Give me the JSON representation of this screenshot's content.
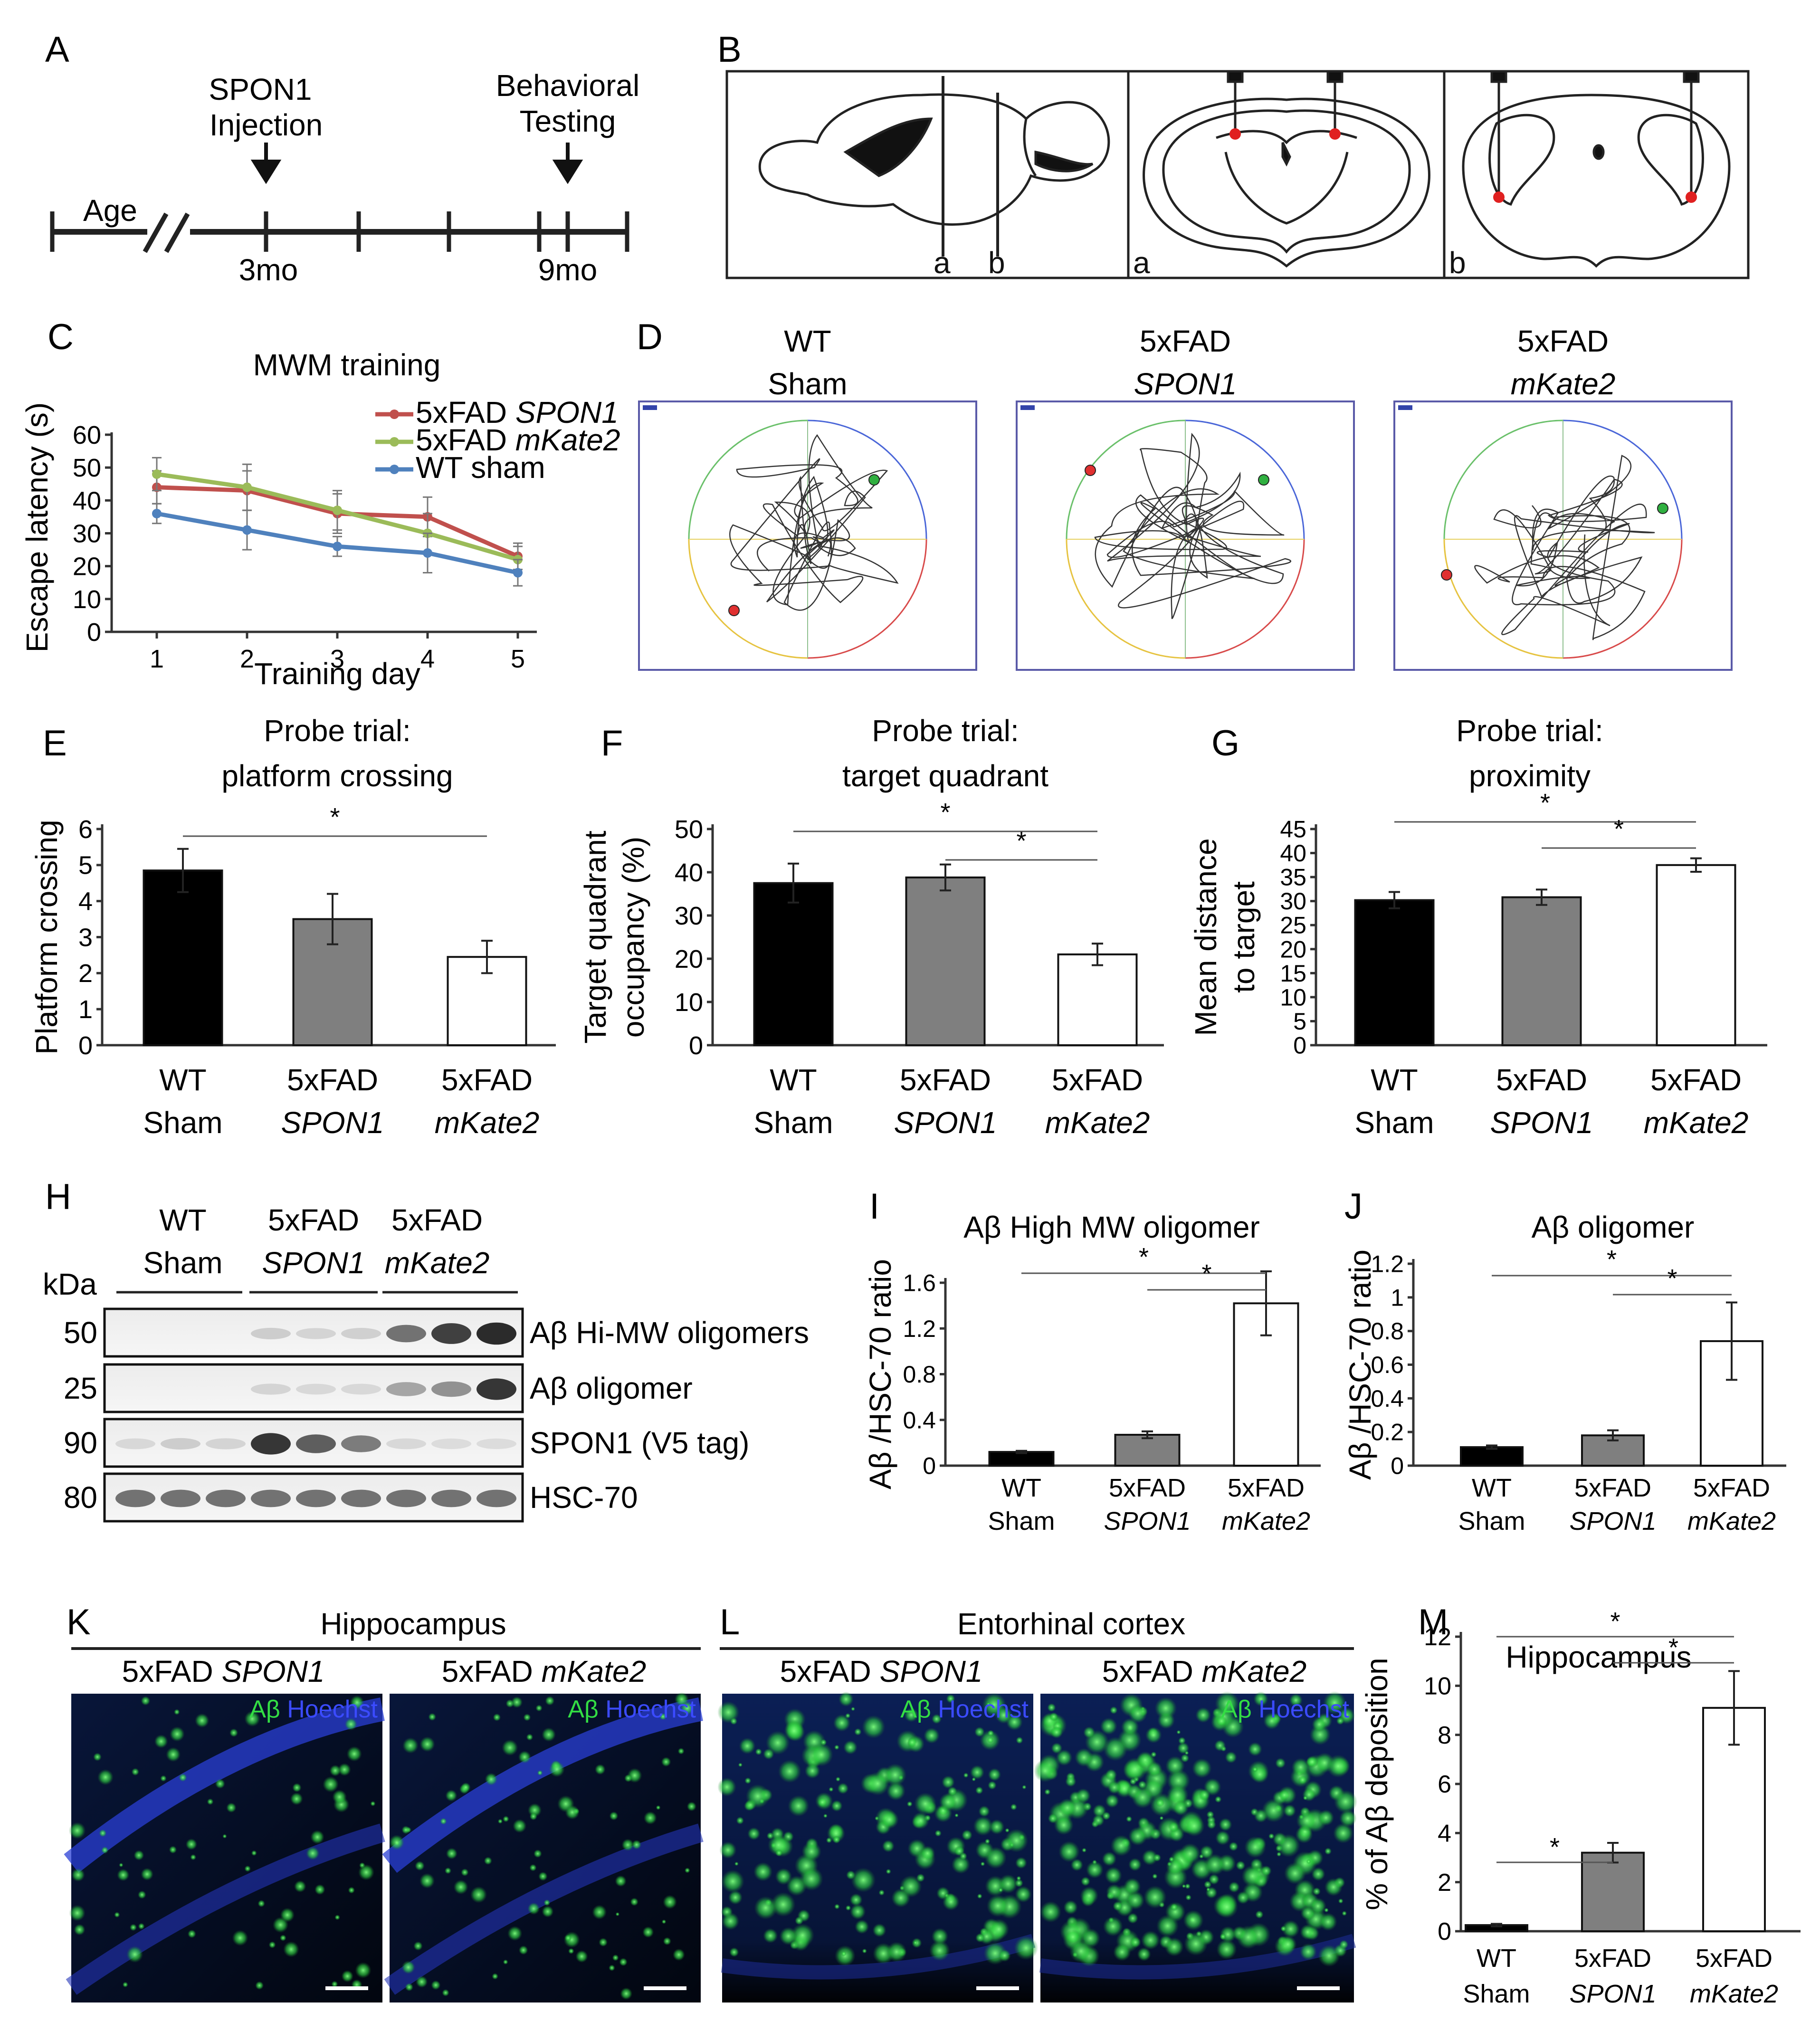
{
  "panel_labels": [
    "A",
    "B",
    "C",
    "D",
    "E",
    "F",
    "G",
    "H",
    "I",
    "J",
    "K",
    "L",
    "M"
  ],
  "timeline": {
    "age_label": "Age",
    "injection_label": [
      "SPON1",
      "Injection"
    ],
    "behavior_label": [
      "Behavioral",
      "Testing"
    ],
    "ticks": [
      "3mo",
      "9mo"
    ]
  },
  "brain_section_labels": [
    "a",
    "b",
    "a",
    "b"
  ],
  "mwm_paths": {
    "groups": [
      [
        "WT",
        "Sham"
      ],
      [
        "5xFAD",
        "SPON1"
      ],
      [
        "5xFAD",
        "mKate2"
      ]
    ]
  },
  "western": {
    "kda_label": "kDa",
    "groups": [
      [
        "WT",
        "Sham"
      ],
      [
        "5xFAD",
        "SPON1"
      ],
      [
        "5xFAD",
        "mKate2"
      ]
    ],
    "rows": [
      {
        "kda": "50",
        "label": "Aβ Hi-MW oligomers"
      },
      {
        "kda": "25",
        "label": "Aβ oligomer"
      },
      {
        "kda": "90",
        "label": "SPON1 (V5 tag)"
      },
      {
        "kda": "80",
        "label": "HSC-70"
      }
    ]
  },
  "microscopy": {
    "K": {
      "title": "Hippocampus",
      "subs": [
        [
          "5xFAD ",
          "SPON1"
        ],
        [
          "5xFAD ",
          "mKate2"
        ]
      ]
    },
    "L": {
      "title": "Entorhinal cortex",
      "subs": [
        [
          "5xFAD ",
          "SPON1"
        ],
        [
          "5xFAD ",
          "mKate2"
        ]
      ]
    },
    "stain": [
      "Aβ",
      "Hoechst"
    ]
  },
  "colors": {
    "black_bar": "#000000",
    "gray_bar": "#7f7f7f",
    "white_bar": "#ffffff",
    "spon1_line": "#c0504d",
    "mkate2_line": "#9bbb59",
    "wt_line": "#4f81bd",
    "aβ_green": "#34d24a",
    "hoechst_blue": "#2f3fe0"
  },
  "chart_data": [
    {
      "id": "C",
      "type": "line",
      "title": "MWM training",
      "xlabel": "Training day",
      "ylabel": "Escape latency (s)",
      "x": [
        1,
        2,
        3,
        4,
        5
      ],
      "ylim": [
        0,
        60
      ],
      "yticks": [
        0,
        10,
        20,
        30,
        40,
        50,
        60
      ],
      "series": [
        {
          "name": "5xFAD SPON1",
          "name_parts": [
            "5xFAD ",
            "SPON1"
          ],
          "color": "#c0504d",
          "values": [
            44,
            43,
            36,
            35,
            23
          ],
          "errors": [
            5,
            6,
            6,
            6,
            4
          ]
        },
        {
          "name": "5xFAD mKate2",
          "name_parts": [
            "5xFAD ",
            "mKate2"
          ],
          "color": "#9bbb59",
          "values": [
            48,
            44,
            37,
            30,
            22
          ],
          "errors": [
            5,
            7,
            6,
            6,
            4
          ]
        },
        {
          "name": "WT sham",
          "name_parts": [
            "WT sham",
            ""
          ],
          "color": "#4f81bd",
          "values": [
            36,
            31,
            26,
            24,
            18
          ],
          "errors": [
            3,
            6,
            3,
            6,
            4
          ]
        }
      ]
    },
    {
      "id": "E",
      "type": "bar",
      "title": [
        "Probe trial:",
        "platform crossing"
      ],
      "ylabel": [
        "Platform crossing"
      ],
      "ylim": [
        0,
        6
      ],
      "yticks": [
        0,
        1,
        2,
        3,
        4,
        5,
        6
      ],
      "categories": [
        [
          "WT",
          "Sham"
        ],
        [
          "5xFAD",
          "SPON1"
        ],
        [
          "5xFAD",
          "mKate2"
        ]
      ],
      "values": [
        4.85,
        3.5,
        2.45
      ],
      "errors": [
        0.6,
        0.7,
        0.45
      ],
      "significance": [
        {
          "from": 0,
          "to": 2,
          "label": "*"
        }
      ]
    },
    {
      "id": "F",
      "type": "bar",
      "title": [
        "Probe trial:",
        "target quadrant"
      ],
      "ylabel": [
        "Target quadrant",
        "occupancy (%)"
      ],
      "ylim": [
        0,
        50
      ],
      "yticks": [
        0,
        10,
        20,
        30,
        40,
        50
      ],
      "categories": [
        [
          "WT",
          "Sham"
        ],
        [
          "5xFAD",
          "SPON1"
        ],
        [
          "5xFAD",
          "mKate2"
        ]
      ],
      "values": [
        37.5,
        38.8,
        21
      ],
      "errors": [
        4.5,
        3,
        2.5
      ],
      "significance": [
        {
          "from": 0,
          "to": 2,
          "label": "*"
        },
        {
          "from": 1,
          "to": 2,
          "label": "*"
        }
      ]
    },
    {
      "id": "G",
      "type": "bar",
      "title": [
        "Probe trial:",
        "proximity"
      ],
      "ylabel": [
        "Mean distance",
        "to target"
      ],
      "ylim": [
        0,
        45
      ],
      "yticks": [
        0,
        5,
        10,
        15,
        20,
        25,
        30,
        35,
        40,
        45
      ],
      "categories": [
        [
          "WT",
          "Sham"
        ],
        [
          "5xFAD",
          "SPON1"
        ],
        [
          "5xFAD",
          "mKate2"
        ]
      ],
      "values": [
        30.2,
        30.8,
        37.5
      ],
      "errors": [
        1.7,
        1.6,
        1.4
      ],
      "significance": [
        {
          "from": 0,
          "to": 2,
          "label": "*"
        },
        {
          "from": 1,
          "to": 2,
          "label": "*"
        }
      ]
    },
    {
      "id": "I",
      "type": "bar",
      "title": [
        "Aβ High MW oligomer"
      ],
      "ylabel": [
        "Aβ /HSC-70 ratio"
      ],
      "ylim": [
        0,
        1.6
      ],
      "yticks": [
        0,
        0.4,
        0.8,
        1.2,
        1.6
      ],
      "categories": [
        [
          "WT",
          "Sham"
        ],
        [
          "5xFAD",
          "SPON1"
        ],
        [
          "5xFAD",
          "mKate2"
        ]
      ],
      "values": [
        0.12,
        0.27,
        1.42
      ],
      "errors": [
        0.01,
        0.03,
        0.28
      ],
      "significance": [
        {
          "from": 0,
          "to": 2,
          "label": "*"
        },
        {
          "from": 1,
          "to": 2,
          "label": "*"
        }
      ]
    },
    {
      "id": "J",
      "type": "bar",
      "title": [
        "Aβ oligomer"
      ],
      "ylabel": [
        "Aβ /HSC-70 ratio"
      ],
      "ylim": [
        0,
        1.2
      ],
      "yticks": [
        0,
        0.2,
        0.4,
        0.6,
        0.8,
        1,
        1.2
      ],
      "categories": [
        [
          "WT",
          "Sham"
        ],
        [
          "5xFAD",
          "SPON1"
        ],
        [
          "5xFAD",
          "mKate2"
        ]
      ],
      "values": [
        0.11,
        0.18,
        0.74
      ],
      "errors": [
        0.01,
        0.03,
        0.23
      ],
      "significance": [
        {
          "from": 0,
          "to": 2,
          "label": "*"
        },
        {
          "from": 1,
          "to": 2,
          "label": "*"
        }
      ]
    },
    {
      "id": "M",
      "type": "bar",
      "title": [
        "Hippocampus"
      ],
      "ylabel": [
        "% of Aβ deposition"
      ],
      "ylim": [
        0,
        12
      ],
      "yticks": [
        0,
        2,
        4,
        6,
        8,
        10,
        12
      ],
      "categories": [
        [
          "WT",
          "Sham"
        ],
        [
          "5xFAD",
          "SPON1"
        ],
        [
          "5xFAD",
          "mKate2"
        ]
      ],
      "values": [
        0.25,
        3.2,
        9.1
      ],
      "errors": [
        0.05,
        0.4,
        1.5
      ],
      "significance": [
        {
          "from": 0,
          "to": 2,
          "label": "*"
        },
        {
          "from": 1,
          "to": 2,
          "label": "*"
        },
        {
          "from": 0,
          "to": 1,
          "label": "*"
        }
      ]
    }
  ]
}
